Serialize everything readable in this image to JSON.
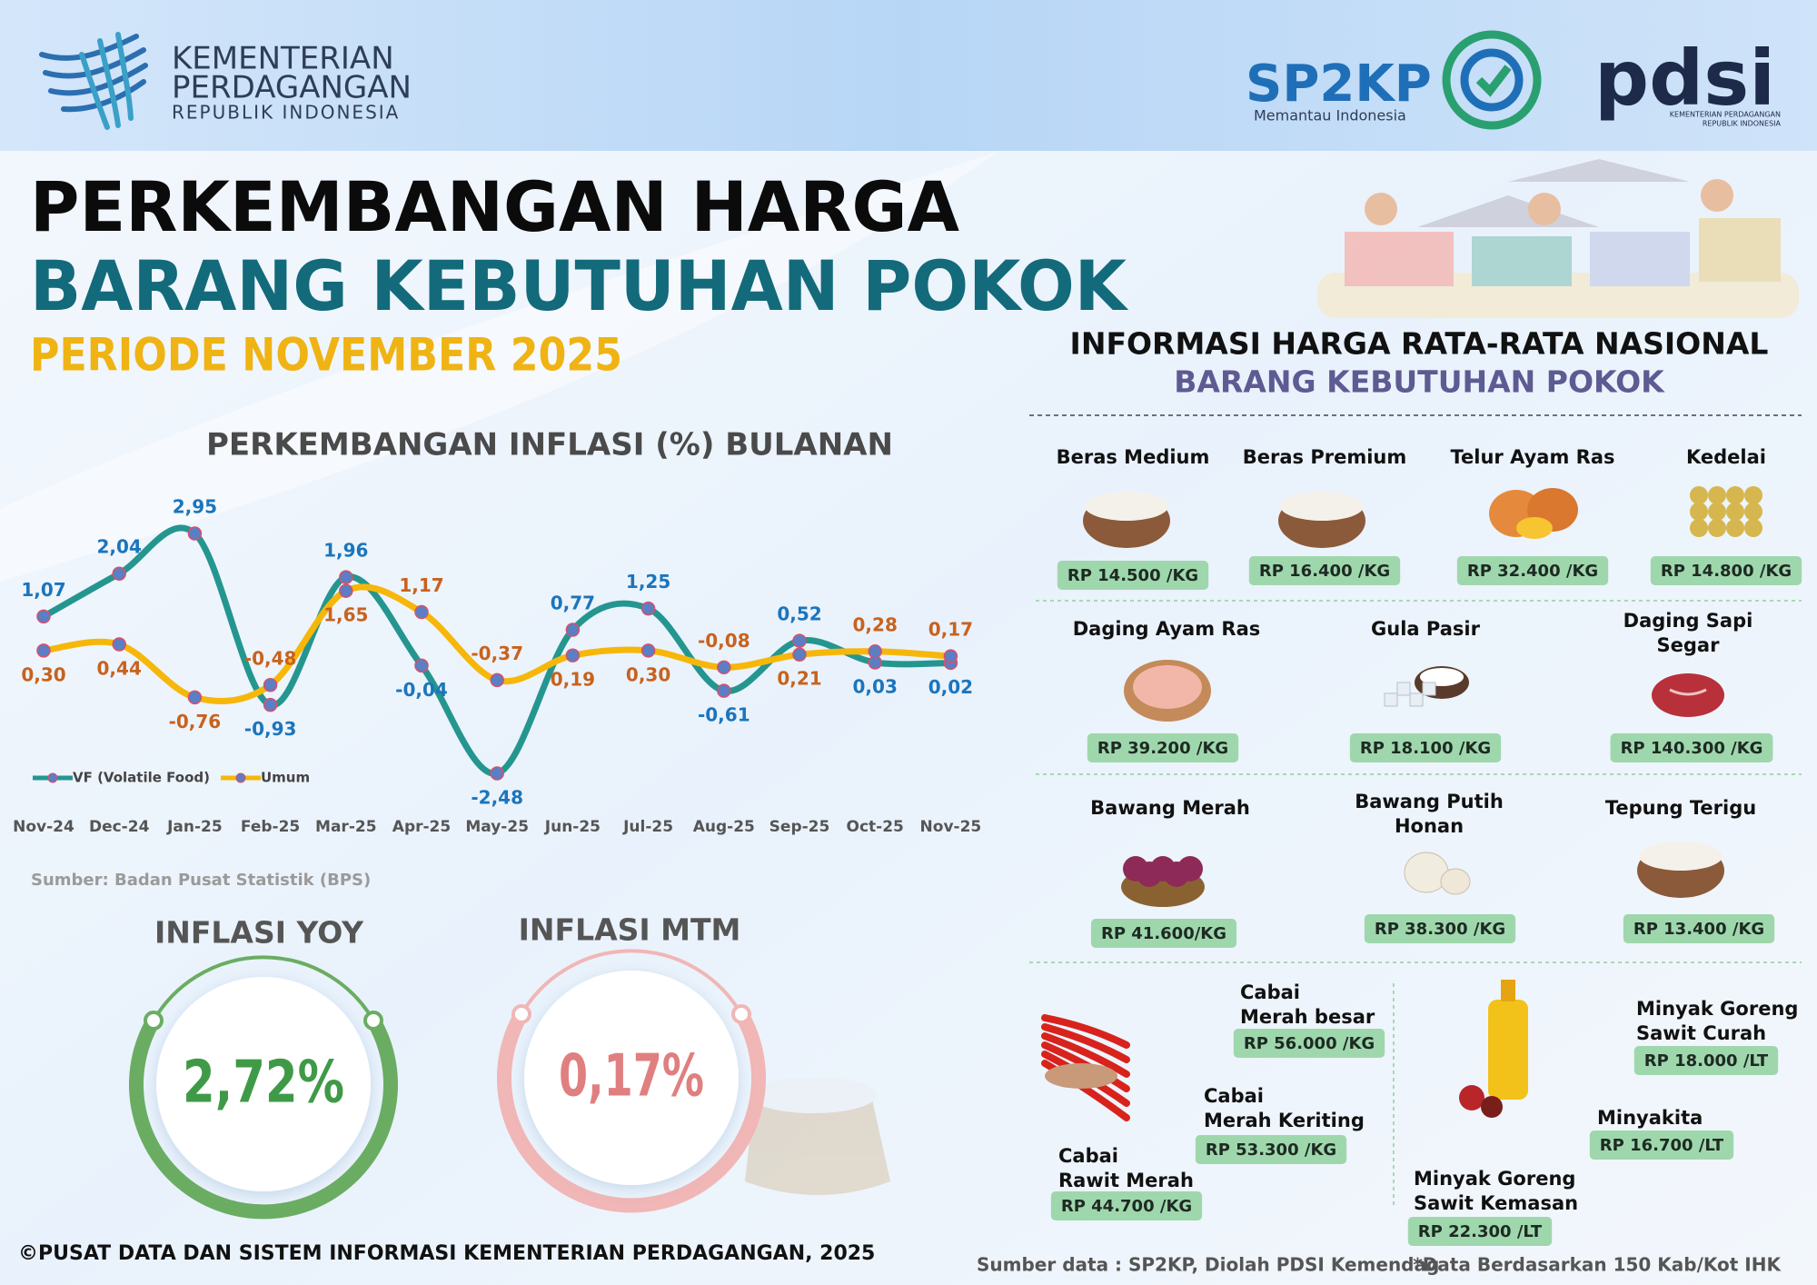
{
  "header": {
    "org": [
      "KEMENTERIAN",
      "PERDAGANGAN",
      "REPUBLIK INDONESIA"
    ],
    "sp2kp": "SP2KP",
    "sp2kp_tagline": "Memantau Indonesia",
    "pdsi": "pdsi",
    "pdsi_sub": [
      "KEMENTERIAN PERDAGANGAN",
      "REPUBLIK INDONESIA"
    ]
  },
  "title": {
    "line1": "PERKEMBANGAN HARGA",
    "line2": "BARANG KEBUTUHAN POKOK",
    "period": "PERIODE NOVEMBER 2025"
  },
  "chart_data": {
    "type": "line",
    "title": "PERKEMBANGAN INFLASI (%) BULANAN",
    "categories": [
      "Nov-24",
      "Dec-24",
      "Jan-25",
      "Feb-25",
      "Mar-25",
      "Apr-25",
      "May-25",
      "Jun-25",
      "Jul-25",
      "Aug-25",
      "Sep-25",
      "Oct-25",
      "Nov-25"
    ],
    "series": [
      {
        "name": "VF (Volatile Food)",
        "color": "#24968f",
        "marker_color": "#5b7ec4",
        "label_color": "#1b75bc",
        "values": [
          1.07,
          2.04,
          2.95,
          -0.93,
          1.96,
          -0.04,
          -2.48,
          0.77,
          1.25,
          -0.61,
          0.52,
          0.03,
          0.02
        ],
        "value_labels": [
          "1,07",
          "2,04",
          "2,95",
          "-0,93",
          "1,96",
          "-0,04",
          "-2,48",
          "0,77",
          "1,25",
          "-0,61",
          "0,52",
          "0,03",
          "0,02"
        ]
      },
      {
        "name": "Umum",
        "color": "#f6b70a",
        "marker_color": "#5b7ec4",
        "label_color": "#c8621d",
        "values": [
          0.3,
          0.44,
          -0.76,
          -0.48,
          1.65,
          1.17,
          -0.37,
          0.19,
          0.3,
          -0.08,
          0.21,
          0.28,
          0.17
        ],
        "value_labels": [
          "0,30",
          "0,44",
          "-0,76",
          "-0,48",
          "1,65",
          "1,17",
          "-0,37",
          "0,19",
          "0,30",
          "-0,08",
          "0,21",
          "0,28",
          "0,17"
        ]
      }
    ],
    "legend": "lower left",
    "source": "Sumber: Badan Pusat Statistik (BPS)"
  },
  "inflation": {
    "yoy": {
      "label": "INFLASI YOY",
      "value": "2,72%"
    },
    "mtm": {
      "label": "INFLASI MTM",
      "value": "0,17%"
    }
  },
  "prices": {
    "title": "INFORMASI HARGA RATA-RATA NASIONAL",
    "subtitle": "BARANG KEBUTUHAN POKOK",
    "items": [
      {
        "name": [
          "Beras Medium"
        ],
        "price": "RP 14.500 /KG"
      },
      {
        "name": [
          "Beras Premium"
        ],
        "price": "RP 16.400 /KG"
      },
      {
        "name": [
          "Telur Ayam Ras"
        ],
        "price": "RP 32.400 /KG"
      },
      {
        "name": [
          "Kedelai"
        ],
        "price": "RP 14.800 /KG"
      },
      {
        "name": [
          "Daging Ayam Ras"
        ],
        "price": "RP 39.200 /KG"
      },
      {
        "name": [
          "Gula Pasir"
        ],
        "price": "RP 18.100 /KG"
      },
      {
        "name": [
          "Daging Sapi",
          "Segar"
        ],
        "price": "RP 140.300 /KG"
      },
      {
        "name": [
          "Bawang Merah"
        ],
        "price": "RP 41.600/KG"
      },
      {
        "name": [
          "Bawang Putih",
          "Honan"
        ],
        "price": "RP 38.300 /KG"
      },
      {
        "name": [
          "Tepung Terigu"
        ],
        "price": "RP 13.400 /KG"
      },
      {
        "name": [
          "Cabai",
          "Merah besar"
        ],
        "price": "RP 56.000 /KG"
      },
      {
        "name": [
          "Cabai",
          "Merah Keriting"
        ],
        "price": "RP 53.300 /KG"
      },
      {
        "name": [
          "Cabai",
          "Rawit Merah"
        ],
        "price": "RP 44.700 /KG"
      },
      {
        "name": [
          "Minyak Goreng",
          "Sawit Curah"
        ],
        "price": "RP 18.000 /LT"
      },
      {
        "name": [
          "Minyakita"
        ],
        "price": "RP 16.700 /LT"
      },
      {
        "name": [
          "Minyak Goreng",
          "Sawit Kemasan"
        ],
        "price": "RP 22.300 /LT"
      }
    ]
  },
  "footer": {
    "copyright": "©PUSAT DATA DAN SISTEM INFORMASI KEMENTERIAN PERDAGANGAN, 2025",
    "source": "Sumber data : SP2KP, Diolah PDSI Kemendag",
    "note": "*Data Berdasarkan 150 Kab/Kot IHK"
  }
}
